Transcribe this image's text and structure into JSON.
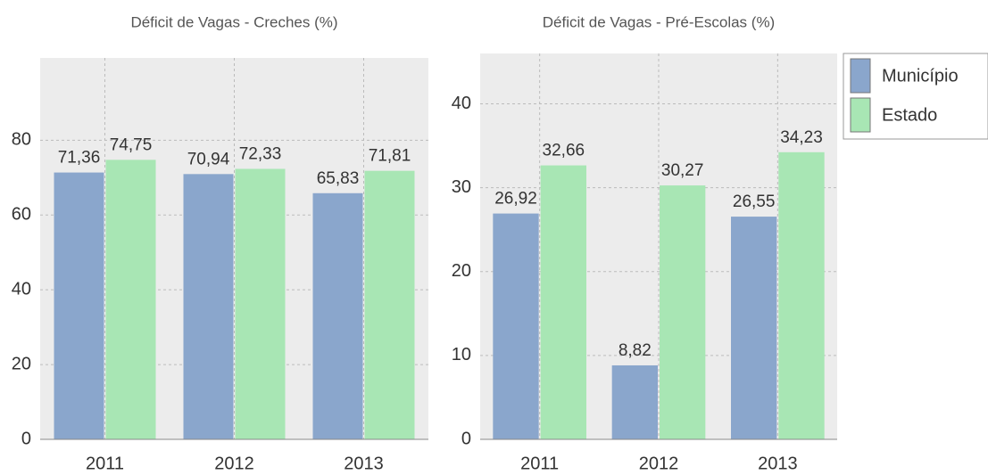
{
  "chart_data": [
    {
      "type": "bar",
      "title": "Déficit de Vagas - Creches (%)",
      "categories": [
        "2011",
        "2012",
        "2013"
      ],
      "series": [
        {
          "name": "Município",
          "color": "#8aa6cc",
          "values": [
            71.36,
            70.94,
            65.83
          ],
          "value_labels": [
            "71,36",
            "70,94",
            "65,83"
          ]
        },
        {
          "name": "Estado",
          "color": "#a8e6b4",
          "values": [
            74.75,
            72.33,
            71.81
          ],
          "value_labels": [
            "74,75",
            "72,33",
            "71,81"
          ]
        }
      ],
      "ylim": [
        0,
        102
      ],
      "yticks": [
        0,
        20,
        40,
        60,
        80
      ],
      "grid": true
    },
    {
      "type": "bar",
      "title": "Déficit de Vagas - Pré-Escolas (%)",
      "categories": [
        "2011",
        "2012",
        "2013"
      ],
      "series": [
        {
          "name": "Município",
          "color": "#8aa6cc",
          "values": [
            26.92,
            8.82,
            26.55
          ],
          "value_labels": [
            "26,92",
            "8,82",
            "26,55"
          ]
        },
        {
          "name": "Estado",
          "color": "#a8e6b4",
          "values": [
            32.66,
            30.27,
            34.23
          ],
          "value_labels": [
            "32,66",
            "30,27",
            "34,23"
          ]
        }
      ],
      "ylim": [
        0,
        46
      ],
      "yticks": [
        0,
        10,
        20,
        30,
        40
      ],
      "grid": true,
      "legend": "right"
    }
  ]
}
